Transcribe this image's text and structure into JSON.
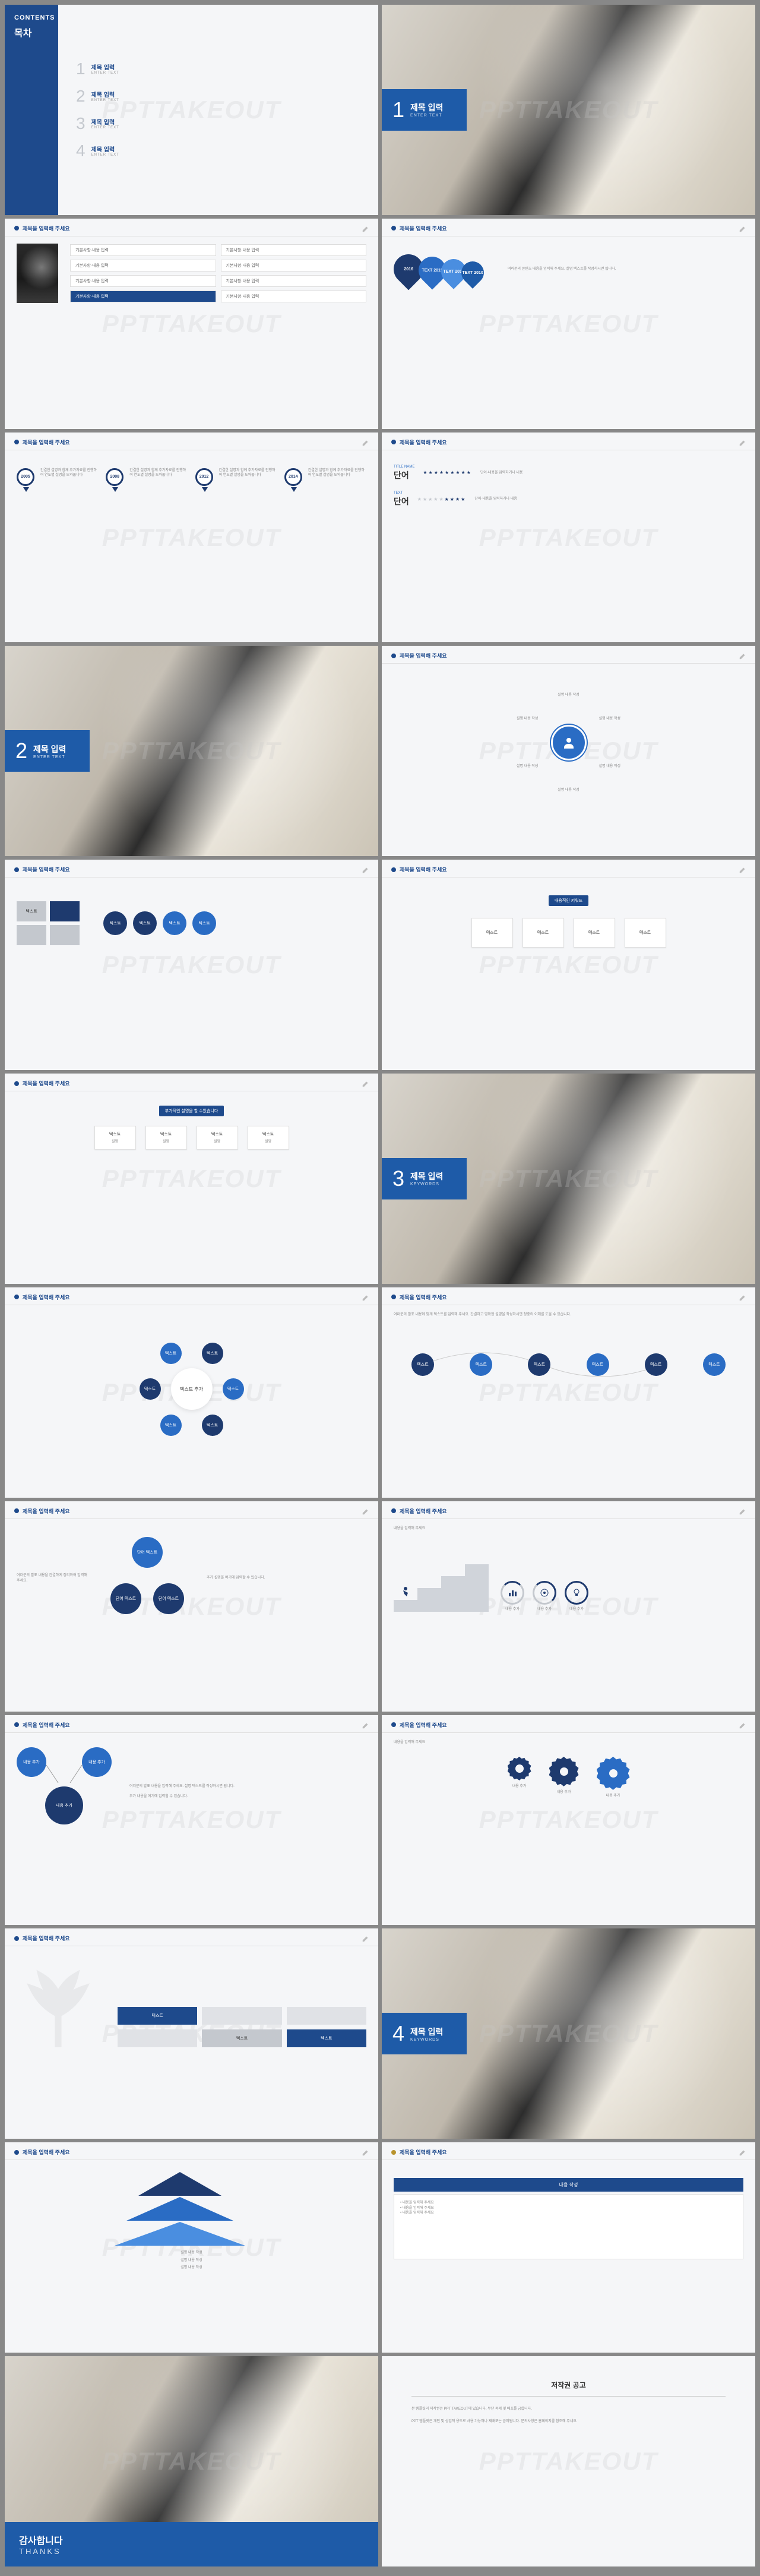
{
  "watermark": "PPTTAKEOUT",
  "header": "제목을 입력해 주세요",
  "contents": {
    "title": "CONTENTS",
    "sub": "목차",
    "items": [
      {
        "n": "1",
        "t": "제목 입력",
        "s": "ENTER TEXT"
      },
      {
        "n": "2",
        "t": "제목 입력",
        "s": "ENTER TEXT"
      },
      {
        "n": "3",
        "t": "제목 입력",
        "s": "ENTER TEXT"
      },
      {
        "n": "4",
        "t": "제목 입력",
        "s": "ENTER TEXT"
      }
    ]
  },
  "sections": [
    {
      "n": "1",
      "t": "제목 입력",
      "s": "ENTER TEXT"
    },
    {
      "n": "2",
      "t": "제목 입력",
      "s": "ENTER TEXT"
    },
    {
      "n": "3",
      "t": "제목 입력",
      "s": "KEYWORDS"
    },
    {
      "n": "4",
      "t": "제목 입력",
      "s": "KEYWORDS"
    }
  ],
  "s3": {
    "rows": [
      "기본사항·내용 입력",
      "기본사항·내용 입력",
      "기본사항·내용 입력",
      "기본사항·내용 입력"
    ],
    "hl": "기본사항·내용 입력"
  },
  "s4": {
    "pins": [
      {
        "y": "2016",
        "c": "#1e3a6e"
      },
      {
        "y": "TEXT 2015",
        "c": "#2a6cc4"
      },
      {
        "y": "TEXT 2012",
        "c": "#4a8ee0"
      },
      {
        "y": "TEXT 2010",
        "c": "#1e5ba8"
      }
    ],
    "desc": "여러분의 콘텐츠 내용을 입력해 주세요. 설명 텍스트를 작성하시면 됩니다."
  },
  "s5": {
    "years": [
      "2005",
      "2008",
      "2012",
      "2014"
    ],
    "desc": "간결한 설명과 함께 추가자료를 진행하여 연도별 설명을 도와줍니다"
  },
  "s6": {
    "title": "TITLE NAME",
    "word": "단어",
    "sub": "TEXT",
    "note": "단어·내용을 입력하거나 내용"
  },
  "s8": {
    "center": "설명할 내용 작성",
    "items": [
      "설명 내용 작성",
      "설명 내용 작성",
      "설명 내용 작성",
      "설명 내용 작성",
      "설명 내용 작성",
      "설명 내용 작성"
    ]
  },
  "s9": {
    "label": "텍스트",
    "items": [
      "텍스트",
      "텍스트",
      "텍스트",
      "텍스트"
    ]
  },
  "s10": {
    "btn": "내용적인 키워드",
    "items": [
      "텍스트",
      "텍스트",
      "텍스트",
      "텍스트"
    ]
  },
  "s11": {
    "title": "부가적인 설명을 할 수있습니다",
    "items": [
      "텍스트",
      "텍스트",
      "텍스트",
      "텍스트"
    ]
  },
  "s13": {
    "center": "텍스트 추가",
    "nodes": [
      "텍스트",
      "텍스트",
      "텍스트",
      "텍스트",
      "텍스트",
      "텍스트"
    ],
    "sub": [
      "단어 작성",
      "단어 작성",
      "단어 작성",
      "단어 작성"
    ]
  },
  "s14": {
    "nodes": [
      "텍스트",
      "텍스트",
      "텍스트",
      "텍스트",
      "텍스트",
      "텍스트"
    ]
  },
  "s15": {
    "items": [
      "단어 텍스트",
      "단어 텍스트",
      "단어 텍스트"
    ]
  },
  "s16": {
    "label": "내용 추가"
  },
  "s17": {
    "label": "내용 추가"
  },
  "s18": {
    "items": [
      "내용 추가",
      "내용 추가",
      "내용 추가"
    ]
  },
  "s19": {
    "label": "텍스트"
  },
  "s21": {
    "levels": [
      "설명 내용 작성",
      "설명 내용 작성",
      "설명 내용 작성"
    ]
  },
  "s22": {
    "title": "내용 작성"
  },
  "thanks": {
    "t": "감사합니다",
    "s": "THANKS"
  },
  "copyright": {
    "t": "저작권 공고",
    "body": "본 템플릿의 저작권은 PPT TAKEOUT에 있습니다. 무단 복제 및 배포를 금합니다."
  },
  "colors": {
    "primary": "#1e4a8c",
    "dark": "#1e3a6e",
    "accent": "#2a6cc4",
    "light": "#4a8ee0",
    "gray": "#c4c8ce",
    "bg": "#f5f6f8"
  }
}
